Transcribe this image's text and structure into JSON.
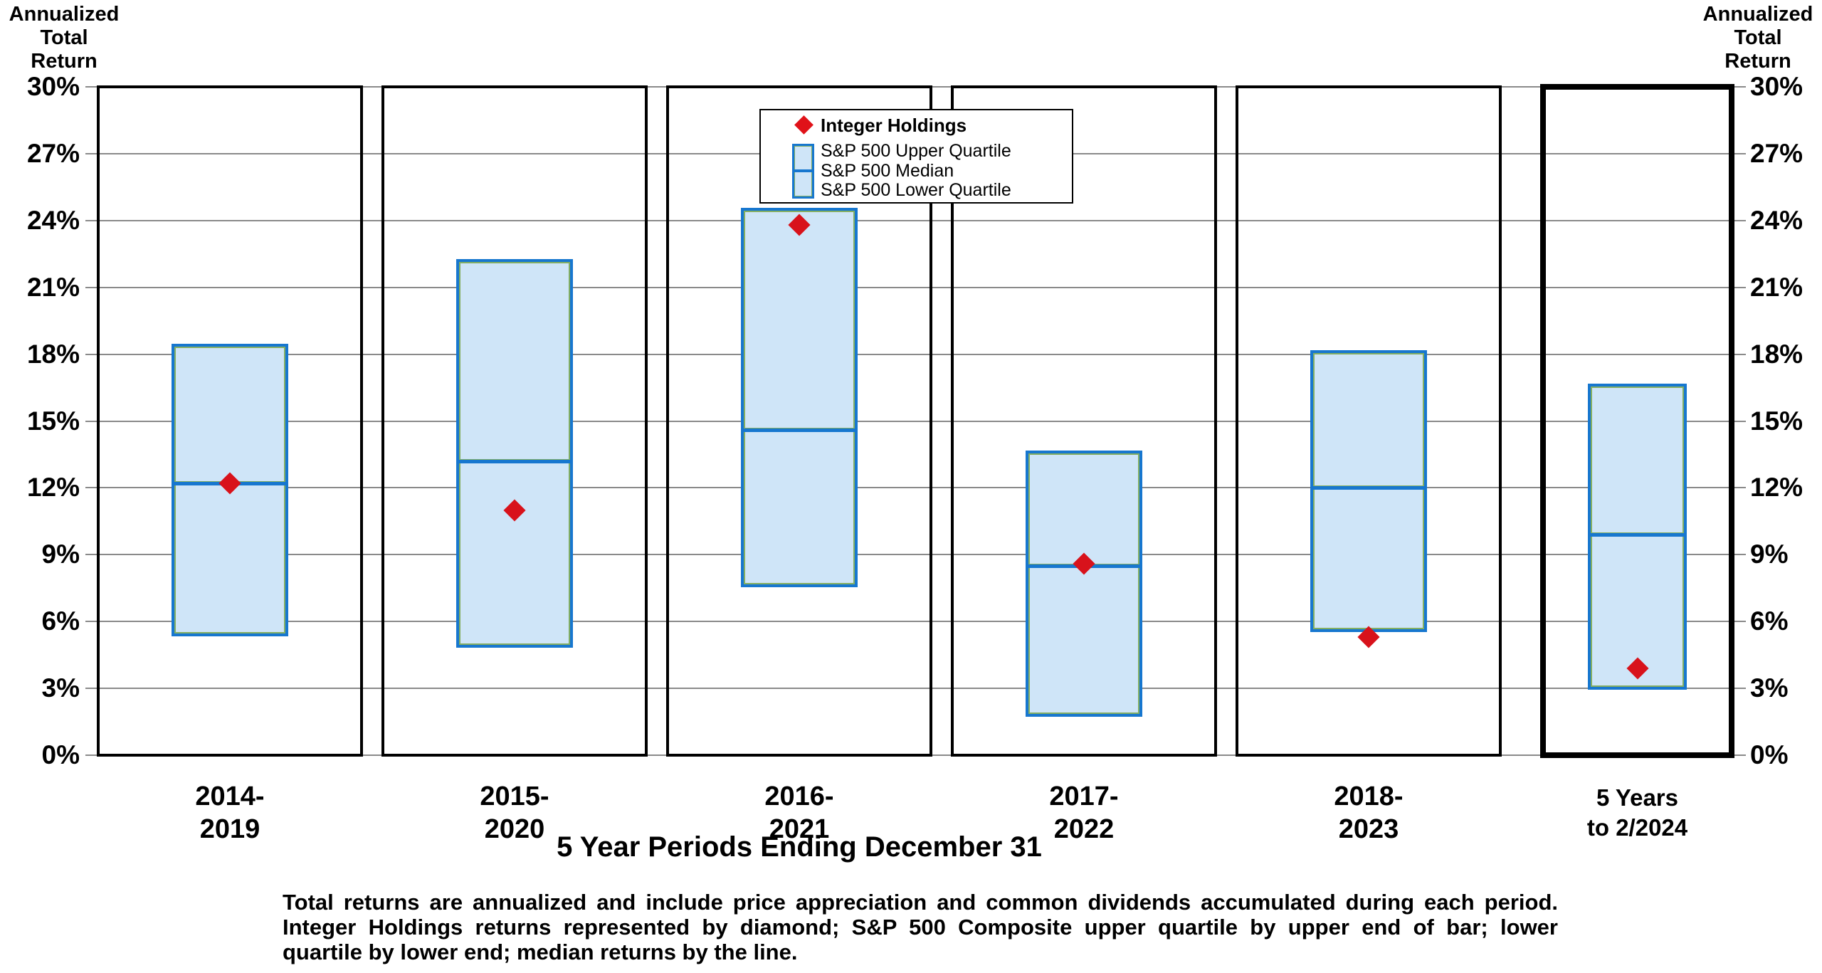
{
  "axis_title_left": {
    "line1": "Annualized",
    "line2": "Total",
    "line3": "Return"
  },
  "axis_title_right": {
    "line1": "Annualized",
    "line2": "Total",
    "line3": "Return"
  },
  "chart_data": {
    "type": "bar",
    "subtype": "floating-quartile-bars-with-diamond-markers",
    "title": "",
    "xlabel": "5 Year Periods Ending December 31",
    "ylabel": "Annualized Total Return",
    "ylim": [
      0,
      30
    ],
    "grid": true,
    "ytick_values": [
      30,
      27,
      24,
      21,
      18,
      15,
      12,
      9,
      6,
      3,
      0
    ],
    "ytick_labels": [
      "30%",
      "27%",
      "24%",
      "21%",
      "18%",
      "15%",
      "12%",
      "9%",
      "6%",
      "3%",
      "0%"
    ],
    "categories": [
      {
        "line1": "2014-",
        "line2": "2019",
        "highlight": false
      },
      {
        "line1": "2015-",
        "line2": "2020",
        "highlight": false
      },
      {
        "line1": "2016-",
        "line2": "2021",
        "highlight": false
      },
      {
        "line1": "2017-",
        "line2": "2022",
        "highlight": false
      },
      {
        "line1": "2018-",
        "line2": "2023",
        "highlight": false
      },
      {
        "line1": "5 Years",
        "line2": "to 2/2024",
        "highlight": true
      }
    ],
    "series": [
      {
        "name": "Integer Holdings",
        "marker": "diamond",
        "color": "#d8121b",
        "values": [
          12.2,
          11.0,
          23.8,
          8.6,
          5.3,
          3.9
        ]
      },
      {
        "name": "S&P 500 Upper Quartile",
        "role": "bar-top",
        "values": [
          18.4,
          22.2,
          24.5,
          13.6,
          18.1,
          16.6
        ]
      },
      {
        "name": "S&P 500 Median",
        "role": "bar-median",
        "values": [
          12.2,
          13.2,
          14.6,
          8.5,
          12.0,
          9.9
        ]
      },
      {
        "name": "S&P 500 Lower Quartile",
        "role": "bar-bottom",
        "values": [
          5.4,
          4.9,
          7.6,
          1.8,
          5.6,
          3.0
        ]
      }
    ],
    "legend": {
      "position": "top-center",
      "marker_label": "Integer Holdings",
      "bar_labels": [
        "S&P 500 Upper Quartile",
        "S&P 500 Median",
        "S&P 500 Lower Quartile"
      ]
    },
    "colors": {
      "bar_fill": "#cfe5f8",
      "bar_border": "#1777cf",
      "bar_inner_stroke": "#84ae62",
      "diamond": "#d8121b",
      "gridline": "#8a8a8a",
      "panel_border": "#000000"
    },
    "footnote_lines": [
      "Total returns are annualized and include price appreciation and common dividends accumulated during each period.",
      "Integer Holdings returns represented by diamond; S&P 500 Composite upper quartile by upper end of bar; lower",
      "quartile by lower end; median returns by the line."
    ]
  }
}
